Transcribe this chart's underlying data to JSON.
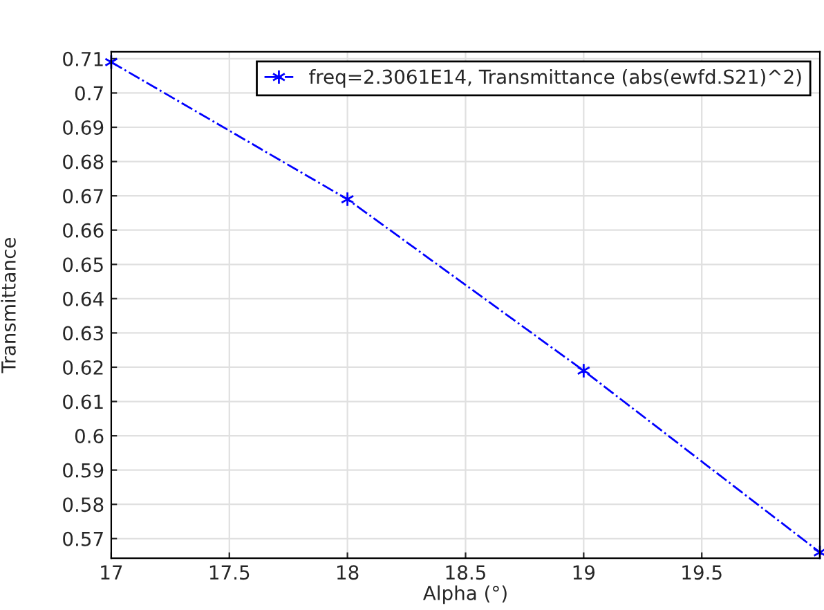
{
  "chart_data": {
    "type": "line",
    "xlabel": "Alpha (°)",
    "ylabel": "Transmittance",
    "x": [
      17,
      18,
      19,
      20
    ],
    "series": [
      {
        "name": "freq=2.3061E14, Transmittance (abs(ewfd.S21)^2)",
        "color": "#0000ff",
        "values": [
          0.709,
          0.669,
          0.619,
          0.566
        ]
      }
    ],
    "xlim": [
      17,
      20
    ],
    "xticks": [
      17,
      17.5,
      18,
      18.5,
      19,
      19.5
    ],
    "ylim": [
      0.5643,
      0.712
    ],
    "yticks": [
      0.57,
      0.58,
      0.59,
      0.6,
      0.61,
      0.62,
      0.63,
      0.64,
      0.65,
      0.66,
      0.67,
      0.68,
      0.69,
      0.7,
      0.71
    ],
    "grid": true,
    "legend": "top right",
    "marker": "cross",
    "line_style": "dashdot"
  }
}
